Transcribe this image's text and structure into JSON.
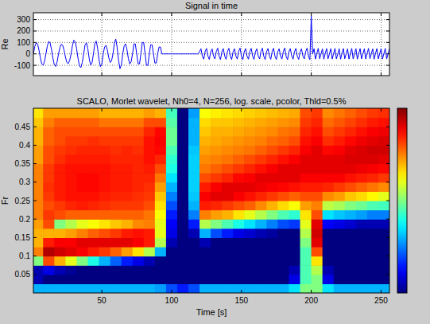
{
  "chart_data": [
    {
      "type": "line",
      "title": "Signal in time",
      "y_label": "Re",
      "color": "#0000ff",
      "grid": true,
      "tick_labels": "y",
      "xlim": [
        1,
        256
      ],
      "ylim": [
        -190,
        360
      ],
      "xticks": [
        50,
        100,
        150,
        200,
        250
      ],
      "yticks": [
        -100,
        0,
        100,
        200,
        300
      ],
      "x": [
        1,
        2,
        3,
        4,
        5,
        6,
        7,
        8,
        9,
        10,
        11,
        12,
        13,
        14,
        15,
        16,
        17,
        18,
        19,
        20,
        21,
        22,
        23,
        24,
        25,
        26,
        27,
        28,
        29,
        30,
        31,
        32,
        33,
        34,
        35,
        36,
        37,
        38,
        39,
        40,
        41,
        42,
        43,
        44,
        45,
        46,
        47,
        48,
        49,
        50,
        51,
        52,
        53,
        54,
        55,
        56,
        57,
        58,
        59,
        60,
        61,
        62,
        63,
        64,
        65,
        66,
        67,
        68,
        69,
        70,
        71,
        72,
        73,
        74,
        75,
        76,
        77,
        78,
        79,
        80,
        81,
        82,
        83,
        84,
        85,
        86,
        87,
        88,
        89,
        90,
        91,
        92,
        93,
        94,
        95,
        96,
        97,
        98,
        99,
        100,
        101,
        102,
        103,
        104,
        105,
        106,
        107,
        108,
        109,
        110,
        111,
        112,
        113,
        114,
        115,
        116,
        117,
        118,
        119,
        120,
        121,
        122,
        123,
        124,
        125,
        126,
        127,
        128,
        129,
        130,
        131,
        132,
        133,
        134,
        135,
        136,
        137,
        138,
        139,
        140,
        141,
        142,
        143,
        144,
        145,
        146,
        147,
        148,
        149,
        150,
        151,
        152,
        153,
        154,
        155,
        156,
        157,
        158,
        159,
        160,
        161,
        162,
        163,
        164,
        165,
        166,
        167,
        168,
        169,
        170,
        171,
        172,
        173,
        174,
        175,
        176,
        177,
        178,
        179,
        180,
        181,
        182,
        183,
        184,
        185,
        186,
        187,
        188,
        189,
        190,
        191,
        192,
        193,
        194,
        195,
        196,
        197,
        198,
        199,
        200,
        201,
        202,
        203,
        204,
        205,
        206,
        207,
        208,
        209,
        210,
        211,
        212,
        213,
        214,
        215,
        216,
        217,
        218,
        219,
        220,
        221,
        222,
        223,
        224,
        225,
        226,
        227,
        228,
        229,
        230,
        231,
        232,
        233,
        234,
        235,
        236,
        237,
        238,
        239,
        240,
        241,
        242,
        243,
        244,
        245,
        246,
        247,
        248,
        249,
        250,
        251,
        252,
        253,
        254,
        255,
        256
      ],
      "values": [
        0,
        64,
        98,
        87,
        34,
        -34,
        -87,
        -98,
        -64,
        0,
        70,
        110,
        95,
        38,
        -38,
        -95,
        -110,
        -70,
        0,
        55,
        85,
        75,
        30,
        -30,
        -75,
        -85,
        -55,
        0,
        75,
        120,
        105,
        42,
        -42,
        -105,
        -120,
        -75,
        0,
        78,
        97,
        43,
        -43,
        -97,
        -78,
        0,
        90,
        112,
        50,
        -50,
        -112,
        -90,
        0,
        60,
        75,
        33,
        -33,
        -75,
        -60,
        0,
        95,
        130,
        55,
        -55,
        -130,
        -95,
        0,
        70,
        88,
        40,
        -40,
        -88,
        -70,
        0,
        87,
        87,
        0,
        -87,
        -87,
        0,
        100,
        100,
        0,
        -100,
        -100,
        0,
        80,
        80,
        0,
        -80,
        -80,
        0,
        60,
        60,
        0,
        0,
        0,
        0,
        0,
        0,
        0,
        0,
        0,
        0,
        0,
        0,
        0,
        0,
        0,
        0,
        0,
        0,
        0,
        0,
        0,
        0,
        0,
        0,
        0,
        0,
        0,
        19,
        46,
        -19,
        -46,
        20,
        48,
        -20,
        -48,
        18,
        44,
        -18,
        -44,
        21,
        50,
        -21,
        -50,
        19,
        47,
        -19,
        -47,
        20,
        49,
        -20,
        -49,
        18,
        45,
        -18,
        -45,
        21,
        51,
        -21,
        -51,
        19,
        46,
        -19,
        -46,
        20,
        48,
        -20,
        -48,
        18,
        44,
        -18,
        -44,
        21,
        50,
        -21,
        -50,
        19,
        47,
        -19,
        -47,
        20,
        49,
        -20,
        -49,
        18,
        45,
        -18,
        -45,
        21,
        51,
        -21,
        -51,
        19,
        46,
        -19,
        -46,
        20,
        48,
        -20,
        -48,
        18,
        44,
        -18,
        -44,
        21,
        50,
        -21,
        -50,
        330,
        0,
        45,
        -45,
        5,
        48,
        -42,
        0,
        44,
        -46,
        4,
        47,
        -43,
        0,
        46,
        -45,
        3,
        48,
        -44,
        0,
        45,
        -46,
        5,
        47,
        -42,
        0,
        44,
        -45,
        4,
        48,
        -44,
        0,
        46,
        -46,
        3,
        47,
        -43,
        0,
        45,
        -45,
        5,
        48,
        -42,
        0,
        44,
        -46,
        4,
        47,
        -43,
        0,
        46,
        -45,
        3,
        48,
        -44,
        0,
        45
      ]
    },
    {
      "type": "heatmap",
      "title": "SCALO, Morlet wavelet, Nh0=4, N=256, log. scale, pcolor, Thld=0.5%",
      "x_label": "Time [s]",
      "y_label": "Fr",
      "grid": false,
      "xlim": [
        1,
        256
      ],
      "ylim": [
        0,
        0.5
      ],
      "xticks": [
        50,
        100,
        150,
        200,
        250
      ],
      "yticks": [
        0.05,
        0.1,
        0.15,
        0.2,
        0.25,
        0.3,
        0.35,
        0.4,
        0.45
      ],
      "zlim": [
        0,
        1
      ],
      "xbins": [
        0,
        8,
        16,
        24,
        32,
        40,
        48,
        56,
        64,
        72,
        80,
        88,
        96,
        104,
        112,
        120,
        128,
        136,
        144,
        152,
        160,
        168,
        176,
        184,
        192,
        200,
        208,
        216,
        224,
        232,
        240,
        248,
        256
      ],
      "ybins": [
        0,
        0.025,
        0.05,
        0.075,
        0.1,
        0.125,
        0.15,
        0.175,
        0.2,
        0.225,
        0.25,
        0.275,
        0.3,
        0.325,
        0.35,
        0.375,
        0.4,
        0.425,
        0.45,
        0.475,
        0.5
      ],
      "cells": [
        [
          0.3,
          0.05,
          0.05,
          0.5,
          0.75,
          0.7,
          0.7,
          0.72,
          0.75,
          0.75,
          0.75,
          0.75,
          0.75,
          0.75,
          0.72,
          0.72,
          0.7,
          0.7,
          0.68,
          0.65
        ],
        [
          0.3,
          0,
          0.1,
          0.8,
          0.95,
          0.85,
          0.7,
          0.8,
          0.82,
          0.8,
          0.82,
          0.83,
          0.82,
          0.82,
          0.8,
          0.8,
          0.78,
          0.78,
          0.75,
          0.72
        ],
        [
          0.3,
          0,
          0.05,
          0.7,
          0.92,
          0.88,
          0.7,
          0.5,
          0.8,
          0.82,
          0.85,
          0.85,
          0.85,
          0.85,
          0.83,
          0.82,
          0.8,
          0.8,
          0.78,
          0.72
        ],
        [
          0.3,
          0,
          0.02,
          0.6,
          0.9,
          0.88,
          0.72,
          0.55,
          0.78,
          0.84,
          0.86,
          0.86,
          0.86,
          0.86,
          0.85,
          0.83,
          0.82,
          0.8,
          0.78,
          0.72
        ],
        [
          0.3,
          0,
          0,
          0.5,
          0.88,
          0.9,
          0.75,
          0.6,
          0.78,
          0.85,
          0.86,
          0.87,
          0.87,
          0.86,
          0.85,
          0.84,
          0.82,
          0.8,
          0.78,
          0.72
        ],
        [
          0.3,
          0,
          0,
          0.4,
          0.85,
          0.9,
          0.78,
          0.62,
          0.78,
          0.84,
          0.86,
          0.87,
          0.87,
          0.86,
          0.85,
          0.84,
          0.83,
          0.8,
          0.78,
          0.72
        ],
        [
          0.3,
          0,
          0,
          0.3,
          0.82,
          0.9,
          0.8,
          0.65,
          0.78,
          0.83,
          0.85,
          0.86,
          0.86,
          0.86,
          0.85,
          0.84,
          0.82,
          0.8,
          0.76,
          0.7
        ],
        [
          0.3,
          0,
          0,
          0.22,
          0.78,
          0.9,
          0.82,
          0.68,
          0.78,
          0.82,
          0.84,
          0.85,
          0.85,
          0.85,
          0.84,
          0.83,
          0.82,
          0.8,
          0.76,
          0.7
        ],
        [
          0.3,
          0,
          0,
          0.15,
          0.72,
          0.9,
          0.85,
          0.7,
          0.78,
          0.82,
          0.84,
          0.85,
          0.85,
          0.85,
          0.84,
          0.84,
          0.82,
          0.8,
          0.76,
          0.7
        ],
        [
          0.3,
          0,
          0,
          0.1,
          0.65,
          0.88,
          0.86,
          0.74,
          0.78,
          0.82,
          0.83,
          0.84,
          0.84,
          0.84,
          0.84,
          0.83,
          0.82,
          0.8,
          0.76,
          0.7
        ],
        [
          0.3,
          0,
          0,
          0.05,
          0.55,
          0.85,
          0.85,
          0.75,
          0.76,
          0.8,
          0.82,
          0.83,
          0.84,
          0.85,
          0.86,
          0.86,
          0.86,
          0.84,
          0.8,
          0.72
        ],
        [
          0.28,
          0,
          0,
          0,
          0.3,
          0.55,
          0.6,
          0.6,
          0.62,
          0.65,
          0.68,
          0.72,
          0.76,
          0.8,
          0.84,
          0.87,
          0.88,
          0.87,
          0.8,
          0.7
        ],
        [
          0.2,
          0,
          0,
          0,
          0,
          0.05,
          0.1,
          0.12,
          0.15,
          0.2,
          0.25,
          0.3,
          0.35,
          0.4,
          0.42,
          0.45,
          0.48,
          0.48,
          0.46,
          0.44
        ],
        [
          0.15,
          0,
          0,
          0,
          0,
          0,
          0,
          0,
          0,
          0,
          0,
          0,
          0,
          0,
          0,
          0,
          0,
          0,
          0,
          0
        ],
        [
          0.2,
          0,
          0,
          0,
          0,
          0,
          0.05,
          0.15,
          0.25,
          0.3,
          0.32,
          0.33,
          0.33,
          0.33,
          0.33,
          0.32,
          0.3,
          0.3,
          0.3,
          0.28
        ],
        [
          0.3,
          0,
          0,
          0,
          0,
          0.05,
          0.3,
          0.55,
          0.75,
          0.85,
          0.88,
          0.85,
          0.8,
          0.76,
          0.74,
          0.72,
          0.7,
          0.68,
          0.66,
          0.62
        ],
        [
          0.3,
          0,
          0,
          0,
          0,
          0,
          0.2,
          0.5,
          0.72,
          0.84,
          0.9,
          0.88,
          0.82,
          0.78,
          0.75,
          0.73,
          0.71,
          0.7,
          0.68,
          0.64
        ],
        [
          0.3,
          0,
          0,
          0,
          0,
          0,
          0.15,
          0.45,
          0.7,
          0.82,
          0.9,
          0.9,
          0.84,
          0.8,
          0.76,
          0.74,
          0.72,
          0.7,
          0.68,
          0.65
        ],
        [
          0.3,
          0,
          0,
          0,
          0,
          0,
          0.1,
          0.4,
          0.65,
          0.8,
          0.88,
          0.9,
          0.87,
          0.82,
          0.78,
          0.75,
          0.73,
          0.71,
          0.69,
          0.66
        ],
        [
          0.3,
          0,
          0,
          0,
          0,
          0,
          0.08,
          0.35,
          0.6,
          0.78,
          0.86,
          0.9,
          0.88,
          0.84,
          0.8,
          0.76,
          0.74,
          0.72,
          0.7,
          0.67
        ],
        [
          0.3,
          0,
          0,
          0,
          0,
          0,
          0.05,
          0.3,
          0.55,
          0.74,
          0.84,
          0.89,
          0.9,
          0.86,
          0.82,
          0.78,
          0.75,
          0.73,
          0.71,
          0.68
        ],
        [
          0.3,
          0,
          0,
          0,
          0,
          0,
          0.03,
          0.25,
          0.5,
          0.7,
          0.82,
          0.88,
          0.9,
          0.88,
          0.84,
          0.8,
          0.77,
          0.74,
          0.72,
          0.69
        ],
        [
          0.3,
          0,
          0,
          0,
          0,
          0,
          0,
          0.2,
          0.45,
          0.66,
          0.8,
          0.87,
          0.9,
          0.9,
          0.86,
          0.82,
          0.78,
          0.76,
          0.73,
          0.7
        ],
        [
          0.35,
          0.1,
          0.05,
          0,
          0,
          0,
          0,
          0.18,
          0.42,
          0.62,
          0.78,
          0.86,
          0.9,
          0.9,
          0.88,
          0.84,
          0.8,
          0.77,
          0.74,
          0.71
        ],
        [
          0.5,
          0.45,
          0.45,
          0.45,
          0.45,
          0.5,
          0.55,
          0.6,
          0.65,
          0.72,
          0.8,
          0.85,
          0.88,
          0.9,
          0.9,
          0.88,
          0.86,
          0.84,
          0.82,
          0.8
        ],
        [
          0.5,
          0.5,
          0.55,
          0.65,
          0.8,
          0.9,
          0.92,
          0.9,
          0.8,
          0.75,
          0.8,
          0.85,
          0.88,
          0.9,
          0.9,
          0.9,
          0.88,
          0.86,
          0.84,
          0.82
        ],
        [
          0.35,
          0.1,
          0.05,
          0,
          0,
          0,
          0,
          0.12,
          0.35,
          0.56,
          0.74,
          0.84,
          0.88,
          0.9,
          0.9,
          0.87,
          0.83,
          0.8,
          0.77,
          0.74
        ],
        [
          0.3,
          0,
          0,
          0,
          0,
          0,
          0,
          0.1,
          0.32,
          0.54,
          0.72,
          0.82,
          0.88,
          0.9,
          0.9,
          0.88,
          0.85,
          0.82,
          0.79,
          0.76
        ],
        [
          0.3,
          0,
          0,
          0,
          0,
          0,
          0,
          0.08,
          0.3,
          0.5,
          0.68,
          0.8,
          0.86,
          0.9,
          0.91,
          0.9,
          0.87,
          0.84,
          0.81,
          0.78
        ],
        [
          0.3,
          0,
          0,
          0,
          0,
          0,
          0,
          0.05,
          0.28,
          0.48,
          0.66,
          0.78,
          0.85,
          0.89,
          0.91,
          0.91,
          0.89,
          0.86,
          0.83,
          0.8
        ],
        [
          0.3,
          0,
          0,
          0,
          0,
          0,
          0,
          0.05,
          0.25,
          0.45,
          0.63,
          0.76,
          0.84,
          0.88,
          0.91,
          0.92,
          0.9,
          0.88,
          0.85,
          0.82
        ],
        [
          0.3,
          0,
          0,
          0,
          0,
          0,
          0,
          0.05,
          0.25,
          0.44,
          0.6,
          0.74,
          0.82,
          0.87,
          0.9,
          0.92,
          0.91,
          0.89,
          0.86,
          0.83
        ]
      ]
    }
  ]
}
